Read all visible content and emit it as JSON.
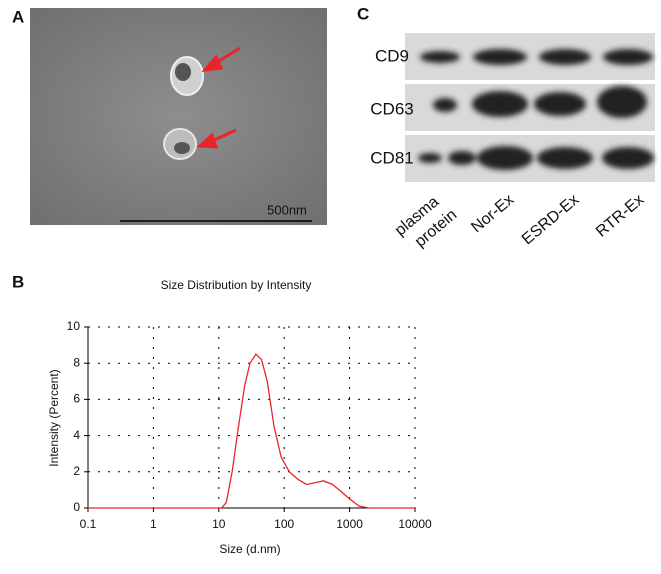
{
  "panel_a": {
    "label": "A",
    "scale_bar": "500nm"
  },
  "panel_c": {
    "label": "C",
    "rows": [
      "CD9",
      "CD63",
      "CD81"
    ],
    "lanes": [
      [
        "plasma",
        "protein"
      ],
      [
        "Nor-Ex"
      ],
      [
        "ESRD-Ex"
      ],
      [
        "RTR-Ex"
      ]
    ]
  },
  "panel_b": {
    "label": "B"
  },
  "chart_data": {
    "type": "line",
    "title": "Size Distribution by Intensity",
    "x_label": "Size (d.nm)",
    "y_label": "Intensity (Percent)",
    "x": [
      0.1,
      10,
      11,
      13,
      16,
      20,
      25,
      30,
      37,
      45,
      55,
      70,
      90,
      120,
      160,
      220,
      300,
      400,
      550,
      750,
      1000,
      1400,
      2000,
      10000
    ],
    "values": [
      0,
      0,
      0,
      0.3,
      2,
      4.5,
      6.8,
      8,
      8.5,
      8.2,
      7,
      4.5,
      2.8,
      2,
      1.6,
      1.3,
      1.4,
      1.5,
      1.3,
      0.9,
      0.5,
      0.1,
      0,
      0
    ],
    "color": "#e8262a",
    "log_x": true,
    "xlim": [
      0.1,
      10000
    ],
    "xticks": [
      0.1,
      1,
      10,
      100,
      1000,
      10000
    ],
    "ylim": [
      0,
      10
    ],
    "yticks": [
      0,
      2,
      4,
      6,
      8,
      10
    ],
    "grid": true
  }
}
